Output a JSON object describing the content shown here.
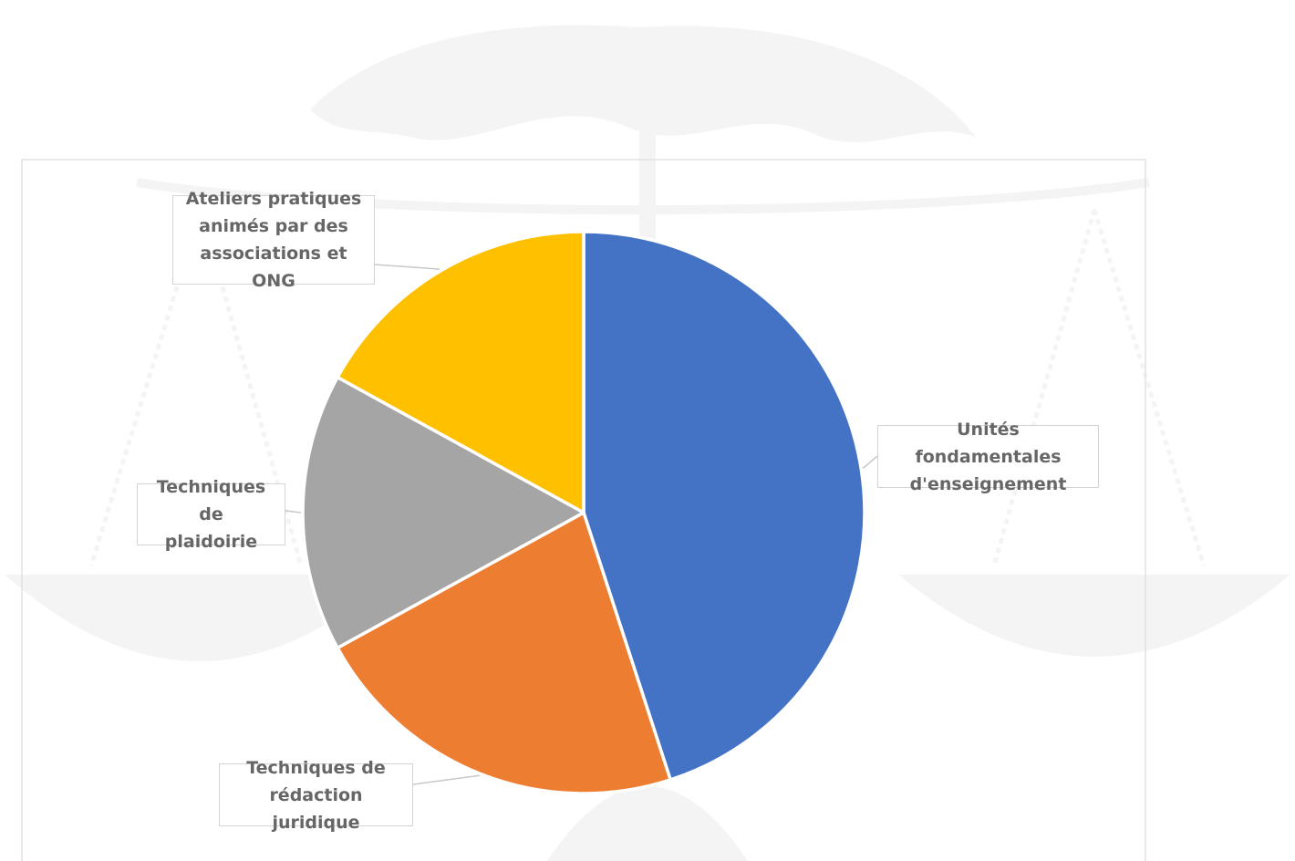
{
  "chart_data": {
    "type": "pie",
    "start_angle_deg": 0,
    "direction": "clockwise",
    "slices": [
      {
        "label": "Unités fondamentales d'enseignement",
        "value": 45,
        "color": "#4472C4"
      },
      {
        "label": "Techniques de rédaction juridique",
        "value": 22,
        "color": "#ED7D31"
      },
      {
        "label": "Techniques de plaidoirie",
        "value": 16,
        "color": "#A5A5A5"
      },
      {
        "label": "Ateliers pratiques animés par des associations et ONG",
        "value": 17,
        "color": "#FFC000"
      }
    ],
    "data_labels_show_values": false,
    "legend": "none",
    "callout_lines": {
      "0": [
        "Unités fondamentales",
        "d'enseignement"
      ],
      "1": [
        "Techniques de",
        "rédaction juridique"
      ],
      "2": [
        "Techniques de",
        "plaidoirie"
      ],
      "3": [
        "Ateliers pratiques",
        "animés par des",
        "associations et ONG"
      ]
    }
  },
  "watermark": {
    "depicts": "scales of justice over world map"
  }
}
